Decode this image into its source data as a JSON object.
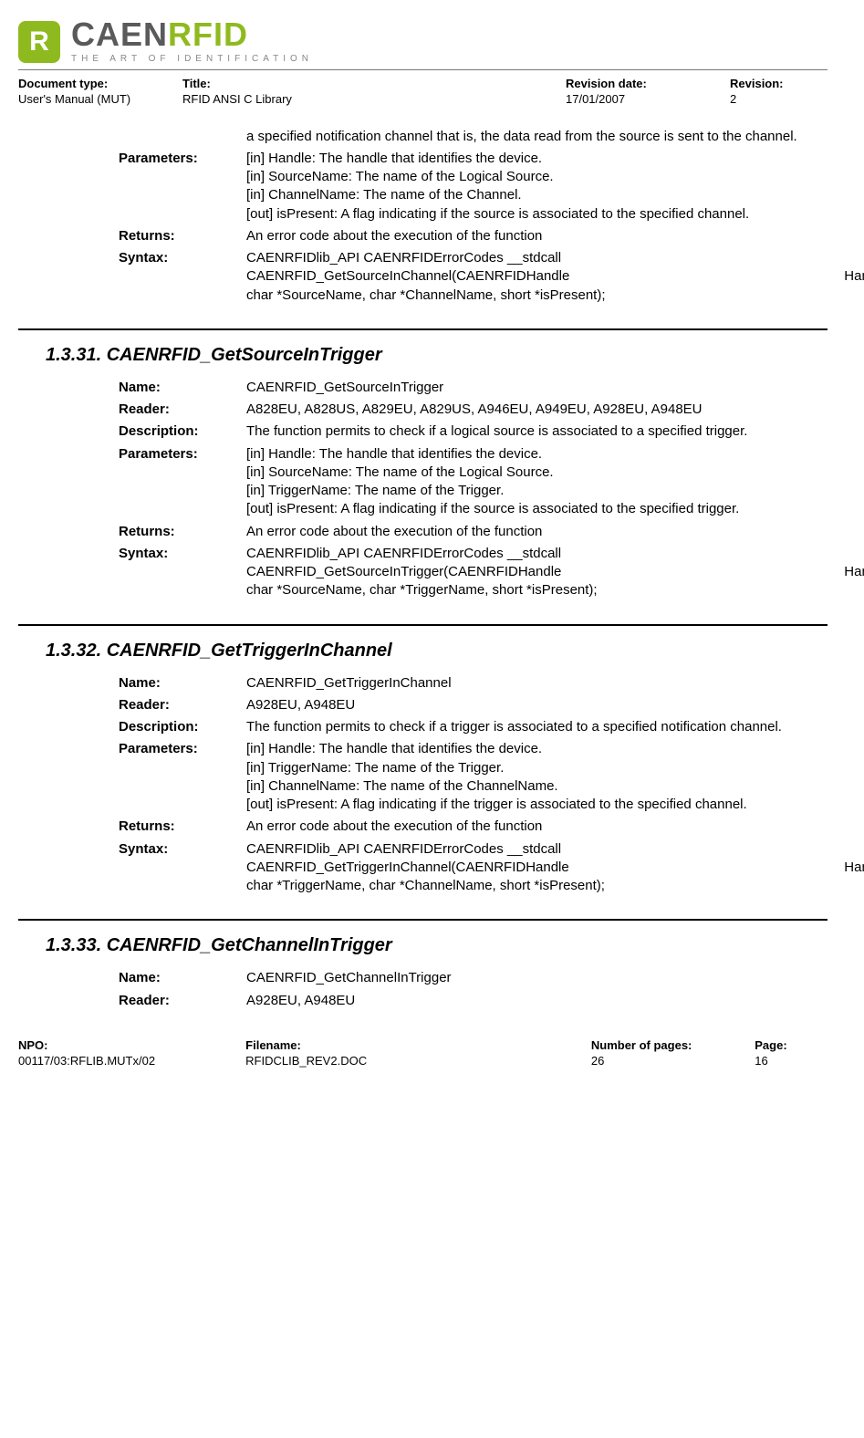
{
  "logo": {
    "badge": "R",
    "main1": "CAEN",
    "main2": "RFID",
    "sub": "THE ART OF IDENTIFICATION"
  },
  "header": {
    "docTypeLabel": "Document type:",
    "docType": "User's Manual (MUT)",
    "titleLabel": "Title:",
    "title": "RFID ANSI C Library",
    "revDateLabel": "Revision date:",
    "revDate": "17/01/2007",
    "revLabel": "Revision:",
    "rev": "2"
  },
  "top": {
    "descCont": "a specified notification channel that is, the data read from the source is sent to the channel.",
    "paramsLabel": "Parameters:",
    "p1": "[in]  Handle: The handle that identifies the device.",
    "p2": "[in]  SourceName: The name of the Logical Source.",
    "p3": "[in]  ChannelName: The name of the Channel.",
    "p4": "[out] isPresent: A flag indicating if the source is associated to the specified channel.",
    "returnsLabel": "Returns:",
    "returns": "An error code about the execution of the function",
    "syntaxLabel": "Syntax:",
    "syntax1": "CAENRFIDlib_API CAENRFIDErrorCodes __stdcall",
    "syntax2a": "CAENRFID_GetSourceInChannel(CAENRFIDHandle",
    "syntax2b": "Handle,",
    "syntax3": "char *SourceName, char *ChannelName, short *isPresent);"
  },
  "s31": {
    "heading": "1.3.31.   CAENRFID_GetSourceInTrigger",
    "nameLabel": "Name:",
    "name": "CAENRFID_GetSourceInTrigger",
    "readerLabel": "Reader:",
    "reader": "A828EU, A828US, A829EU, A829US, A946EU, A949EU, A928EU, A948EU",
    "descLabel": "Description:",
    "desc": "The function permits to check if a logical source is associated to a specified trigger.",
    "paramsLabel": "Parameters:",
    "p1": "[in]  Handle: The handle that identifies the device.",
    "p2": "[in]  SourceName: The name of the Logical Source.",
    "p3": "[in]  TriggerName: The name of the Trigger.",
    "p4": "[out] isPresent: A flag indicating if the source is associated to the specified trigger.",
    "returnsLabel": "Returns:",
    "returns": "An error code about the execution of the function",
    "syntaxLabel": "Syntax:",
    "syntax1": "CAENRFIDlib_API CAENRFIDErrorCodes __stdcall",
    "syntax2a": "CAENRFID_GetSourceInTrigger(CAENRFIDHandle",
    "syntax2b": "Handle,",
    "syntax3": "char *SourceName, char *TriggerName, short *isPresent);"
  },
  "s32": {
    "heading": "1.3.32.   CAENRFID_GetTriggerInChannel",
    "nameLabel": "Name:",
    "name": "CAENRFID_GetTriggerInChannel",
    "readerLabel": "Reader:",
    "reader": "A928EU, A948EU",
    "descLabel": "Description:",
    "desc": "The function permits to check if a trigger is associated to a specified notification channel.",
    "paramsLabel": "Parameters:",
    "p1": "[in]  Handle: The handle that identifies the device.",
    "p2": "[in]  TriggerName: The name of the Trigger.",
    "p3": "[in]  ChannelName: The name of the ChannelName.",
    "p4": "[out] isPresent: A flag indicating if the trigger is associated to the specified channel.",
    "returnsLabel": "Returns:",
    "returns": "An error code about the execution of the function",
    "syntaxLabel": "Syntax:",
    "syntax1": "CAENRFIDlib_API CAENRFIDErrorCodes __stdcall",
    "syntax2a": "CAENRFID_GetTriggerInChannel(CAENRFIDHandle",
    "syntax2b": "Handle,",
    "syntax3": "char *TriggerName, char *ChannelName, short *isPresent);"
  },
  "s33": {
    "heading": "1.3.33.   CAENRFID_GetChannelInTrigger",
    "nameLabel": "Name:",
    "name": "CAENRFID_GetChannelInTrigger",
    "readerLabel": "Reader:",
    "reader": "A928EU, A948EU"
  },
  "footer": {
    "npoLabel": "NPO:",
    "npo": "00117/03:RFLIB.MUTx/02",
    "fileLabel": "Filename:",
    "file": "RFIDCLIB_REV2.DOC",
    "numLabel": "Number of pages:",
    "num": "26",
    "pageLabel": "Page:",
    "page": "16"
  }
}
